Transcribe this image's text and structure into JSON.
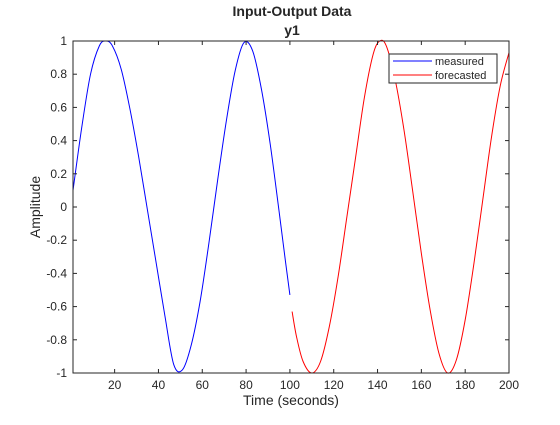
{
  "figure": {
    "title": "Input-Output Data",
    "subtitle": "y1"
  },
  "chart_data": {
    "type": "line",
    "title": "Input-Output Data",
    "subtitle": "y1",
    "xlabel": "Time (seconds)",
    "ylabel": "Amplitude",
    "xlim": [
      1,
      200
    ],
    "ylim": [
      -1,
      1
    ],
    "xticks": [
      20,
      40,
      60,
      80,
      100,
      120,
      140,
      160,
      180,
      200
    ],
    "yticks": [
      -1,
      -0.8,
      -0.6,
      -0.4,
      -0.2,
      0,
      0.2,
      0.4,
      0.6,
      0.8,
      1
    ],
    "ytick_labels": [
      "-1",
      "-0.8",
      "-0.6",
      "-0.4",
      "-0.2",
      "0",
      "0.2",
      "0.4",
      "0.6",
      "0.8",
      "1"
    ],
    "grid": false,
    "legend_position": "top-right",
    "series": [
      {
        "name": "measured",
        "color": "#0000ff",
        "x": [
          1,
          5,
          9,
          13,
          16,
          19,
          23,
          27,
          31,
          35,
          39,
          43,
          47,
          51,
          55,
          59,
          63,
          67,
          71,
          75,
          79,
          83,
          87,
          91,
          95,
          98,
          100
        ],
        "y": [
          0.1,
          0.48,
          0.8,
          0.97,
          1.0,
          0.97,
          0.83,
          0.59,
          0.3,
          -0.02,
          -0.34,
          -0.66,
          -0.95,
          -0.98,
          -0.83,
          -0.57,
          -0.22,
          0.16,
          0.52,
          0.82,
          0.99,
          0.94,
          0.71,
          0.38,
          -0.02,
          -0.33,
          -0.53
        ]
      },
      {
        "name": "forecasted",
        "color": "#ff0000",
        "x": [
          101,
          103,
          106,
          110,
          114,
          118,
          122,
          126,
          130,
          134,
          138,
          141,
          144,
          148,
          152,
          156,
          160,
          164,
          168,
          172,
          176,
          180,
          184,
          188,
          192,
          196,
          200
        ],
        "y": [
          -0.63,
          -0.78,
          -0.93,
          -1.0,
          -0.93,
          -0.72,
          -0.42,
          -0.06,
          0.3,
          0.66,
          0.92,
          1.0,
          0.97,
          0.77,
          0.47,
          0.1,
          -0.28,
          -0.62,
          -0.88,
          -1.0,
          -0.92,
          -0.68,
          -0.34,
          0.04,
          0.42,
          0.73,
          0.93
        ]
      }
    ]
  }
}
